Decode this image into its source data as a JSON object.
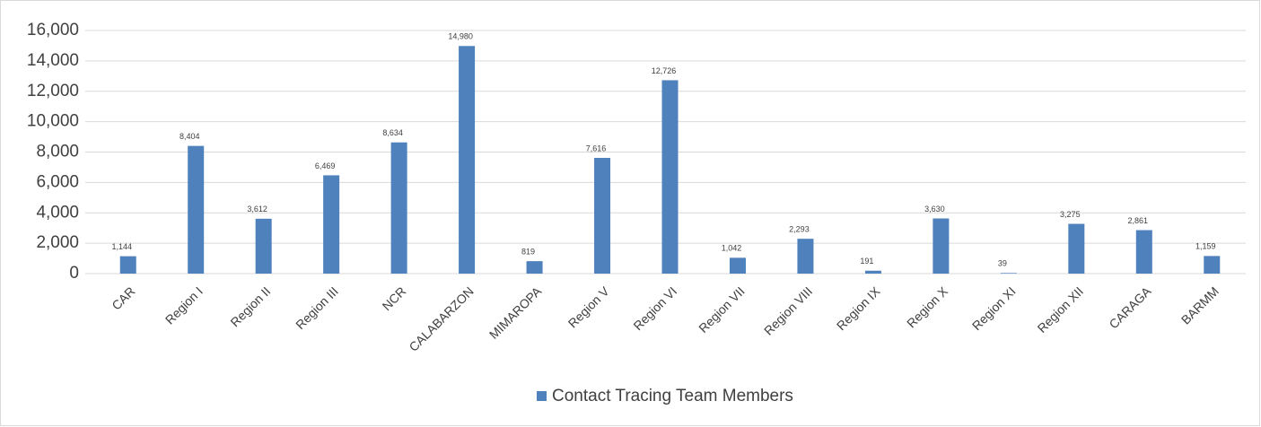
{
  "chart_data": {
    "type": "bar",
    "categories": [
      "CAR",
      "Region I",
      "Region II",
      "Region III",
      "NCR",
      "CALABARZON",
      "MIMAROPA",
      "Region V",
      "Region VI",
      "Region VII",
      "Region VIII",
      "Region IX",
      "Region X",
      "Region XI",
      "Region XII",
      "CARAGA",
      "BARMM"
    ],
    "series": [
      {
        "name": "Contact Tracing Team Members",
        "color": "#4f81bd",
        "values": [
          1144,
          8404,
          3612,
          6469,
          8634,
          14980,
          819,
          7616,
          12726,
          1042,
          2293,
          191,
          3630,
          39,
          3275,
          2861,
          1159
        ],
        "value_labels": [
          "1,144",
          "8,404",
          "3,612",
          "6,469",
          "8,634",
          "14,980",
          "819",
          "7,616",
          "12,726",
          "1,042",
          "2,293",
          "191",
          "3,630",
          "39",
          "3,275",
          "2,861",
          "1,159"
        ]
      }
    ],
    "ylim": [
      0,
      16000
    ],
    "yticks": [
      0,
      {
        "value": 2000,
        "label": "2,000"
      },
      {
        "value": 4000,
        "label": "4,000"
      },
      {
        "value": 6000,
        "label": "6,000"
      },
      {
        "value": 8000,
        "label": "8,000"
      },
      {
        "value": 10000,
        "label": "10,000"
      },
      {
        "value": 12000,
        "label": "12,000"
      },
      {
        "value": 14000,
        "label": "14,000"
      },
      {
        "value": 16000,
        "label": "16,000"
      }
    ],
    "grid": true,
    "legend": "bottom"
  }
}
